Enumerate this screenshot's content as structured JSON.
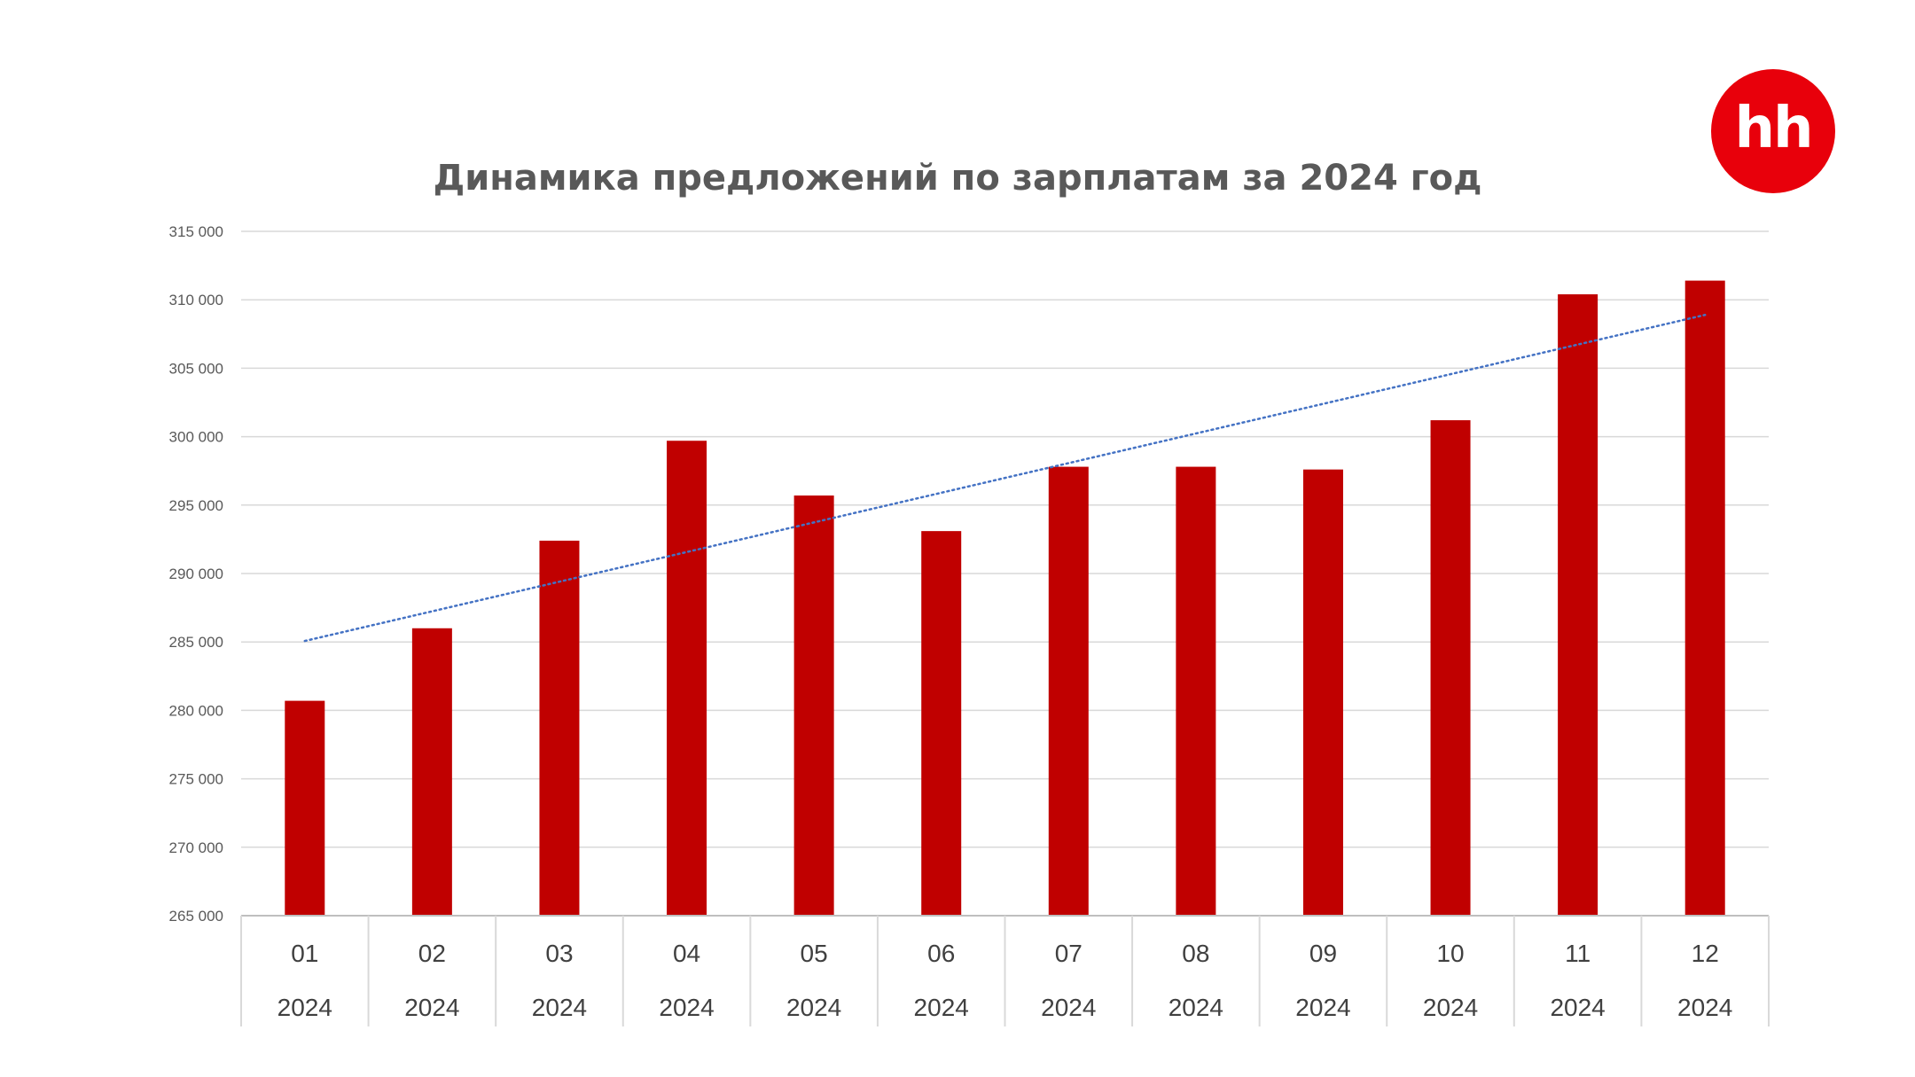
{
  "logo": {
    "text": "hh",
    "color": "#E8000B"
  },
  "chart_data": {
    "type": "bar",
    "title": "Динамика предложений по зарплатам за 2024 год",
    "xlabel": "",
    "ylabel": "",
    "categories": [
      "01",
      "02",
      "03",
      "04",
      "05",
      "06",
      "07",
      "08",
      "09",
      "10",
      "11",
      "12"
    ],
    "category_years": [
      "2024",
      "2024",
      "2024",
      "2024",
      "2024",
      "2024",
      "2024",
      "2024",
      "2024",
      "2024",
      "2024",
      "2024"
    ],
    "values": [
      280700,
      286000,
      292400,
      299700,
      295700,
      293100,
      297800,
      297800,
      297600,
      301200,
      310400,
      311400
    ],
    "ylim": [
      265000,
      315000
    ],
    "yticks": [
      265000,
      270000,
      275000,
      280000,
      285000,
      290000,
      295000,
      300000,
      305000,
      310000,
      315000
    ],
    "ytick_labels": [
      "265 000",
      "270 000",
      "275 000",
      "280 000",
      "285 000",
      "290 000",
      "295 000",
      "300 000",
      "305 000",
      "310 000",
      "315 000"
    ],
    "trendline": {
      "type": "linear",
      "style": "dotted",
      "color": "#4472C4"
    },
    "bar_color": "#C00000",
    "grid": true,
    "legend": "none"
  }
}
